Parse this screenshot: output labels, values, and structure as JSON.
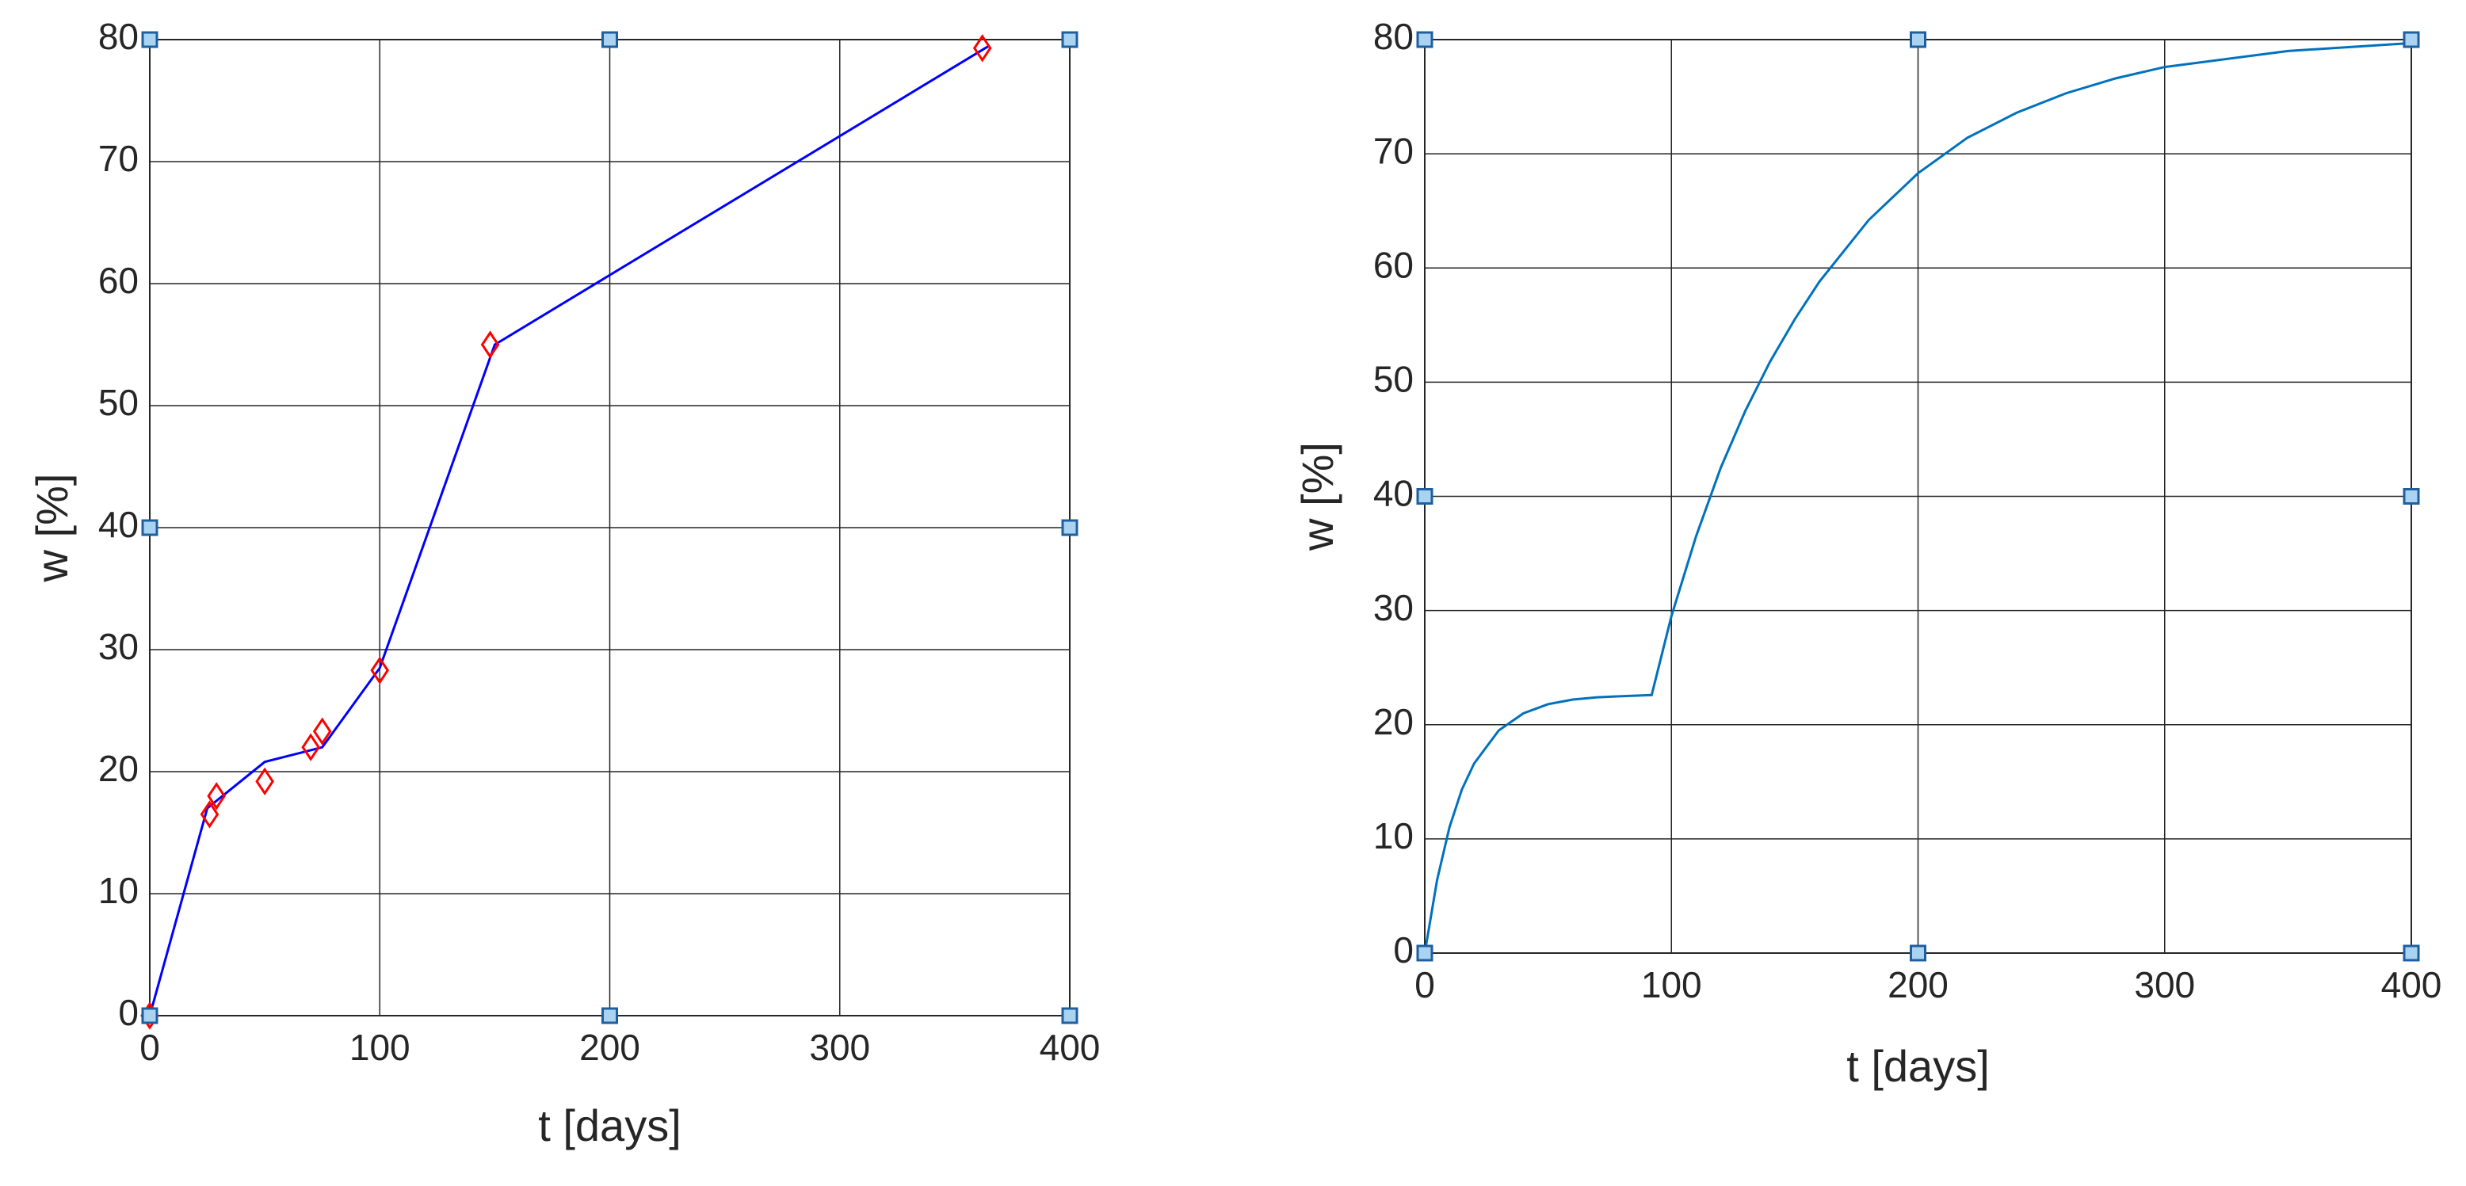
{
  "chart_data": [
    {
      "type": "line",
      "xlabel": "t [days]",
      "ylabel": "w [%]",
      "xlim": [
        0,
        400
      ],
      "ylim": [
        0,
        80
      ],
      "xticks": [
        0,
        100,
        200,
        300,
        400
      ],
      "yticks": [
        0,
        10,
        20,
        30,
        40,
        50,
        60,
        70,
        80
      ],
      "grid": true,
      "series": [
        {
          "color": "#0000ff",
          "style": "line",
          "x": [
            0,
            25,
            50,
            75,
            100,
            150,
            365
          ],
          "values": [
            0,
            17,
            20.8,
            22,
            28.5,
            55,
            79.5
          ]
        },
        {
          "color": "#ff0000",
          "style": "diamond",
          "x": [
            0,
            26,
            29,
            50,
            70,
            75,
            100,
            148,
            362
          ],
          "values": [
            0,
            16.5,
            18,
            19.2,
            22,
            23.3,
            28.3,
            55,
            79.3
          ]
        },
        {
          "color": "#1f5f9f",
          "style": "square",
          "x": [
            0,
            200,
            400,
            0,
            400,
            0,
            200,
            400
          ],
          "values": [
            80,
            80,
            80,
            40,
            40,
            0,
            0,
            0
          ]
        }
      ]
    },
    {
      "type": "line",
      "xlabel": "t [days]",
      "ylabel": "w [%]",
      "xlim": [
        0,
        400
      ],
      "ylim": [
        0,
        80
      ],
      "xticks": [
        0,
        100,
        200,
        300,
        400
      ],
      "yticks": [
        0,
        10,
        20,
        30,
        40,
        50,
        60,
        70,
        80
      ],
      "grid": true,
      "series": [
        {
          "color": "#0072bd",
          "style": "line",
          "x": [
            0,
            5,
            10,
            15,
            20,
            30,
            40,
            50,
            60,
            70,
            80,
            92,
            100,
            110,
            120,
            130,
            140,
            150,
            160,
            180,
            200,
            220,
            240,
            260,
            280,
            300,
            350,
            400
          ],
          "values": [
            0,
            6.4,
            11.0,
            14.3,
            16.6,
            19.5,
            21.0,
            21.8,
            22.2,
            22.4,
            22.5,
            22.6,
            29.5,
            36.5,
            42.5,
            47.5,
            51.8,
            55.5,
            58.8,
            64.2,
            68.3,
            71.4,
            73.6,
            75.3,
            76.6,
            77.6,
            79.0,
            79.7
          ]
        },
        {
          "color": "#1f5f9f",
          "style": "square",
          "x": [
            0,
            200,
            400,
            0,
            400,
            0,
            200,
            400
          ],
          "values": [
            80,
            80,
            80,
            40,
            40,
            0,
            0,
            0
          ]
        }
      ]
    }
  ]
}
